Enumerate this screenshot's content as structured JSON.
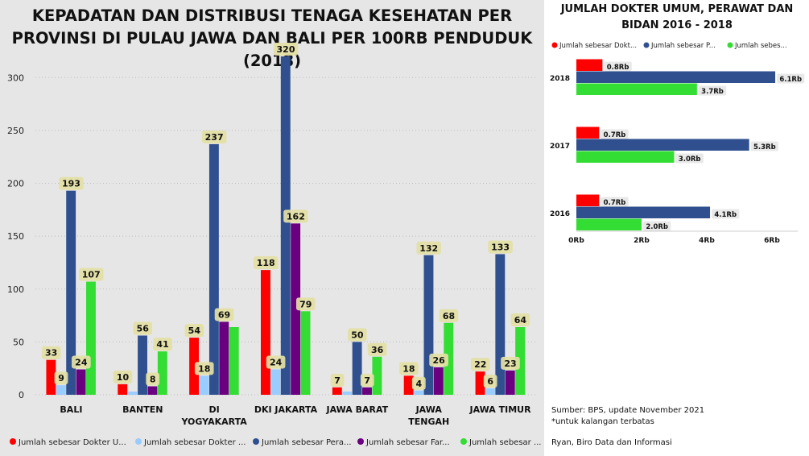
{
  "left": {
    "title": "KEPADATAN DAN DISTRIBUSI TENAGA KESEHATAN PER PROVINSI DI PULAU JAWA DAN BALI PER 100RB PENDUDUK (2018)"
  },
  "right": {
    "title": "JUMLAH DOKTER UMUM, PERAWAT DAN BIDAN 2016 - 2018"
  },
  "notes": {
    "source": "Sumber: BPS, update November 2021",
    "footnote": "*untuk kalangan terbatas",
    "author": "Ryan, Biro Data dan Informasi"
  },
  "chart_data": [
    {
      "type": "bar",
      "title": "KEPADATAN DAN DISTRIBUSI TENAGA KESEHATAN PER PROVINSI DI PULAU JAWA DAN BALI PER 100RB PENDUDUK (2018)",
      "categories": [
        [
          "BALI"
        ],
        [
          "BANTEN"
        ],
        [
          "DI",
          "YOGYAKARTA"
        ],
        [
          "DKI JAKARTA"
        ],
        [
          "JAWA BARAT"
        ],
        [
          "JAWA",
          "TENGAH"
        ],
        [
          "JAWA TIMUR"
        ]
      ],
      "ylim": [
        0,
        320
      ],
      "yticks": [
        0,
        50,
        100,
        150,
        200,
        250,
        300
      ],
      "grid": true,
      "legend_position": "bottom",
      "series": [
        {
          "name": "Jumlah sebesar Dokter U...",
          "color": "#ff0000",
          "values": [
            33,
            10,
            54,
            118,
            7,
            18,
            22
          ],
          "labels": [
            "33",
            "10",
            "54",
            "118",
            "7",
            "18",
            "22"
          ]
        },
        {
          "name": "Jumlah sebesar Dokter ...",
          "color": "#99ccff",
          "values": [
            9,
            3,
            18,
            24,
            3,
            4,
            6
          ],
          "labels": [
            "9",
            "",
            "18",
            "24",
            "",
            "4",
            "6"
          ]
        },
        {
          "name": "Jumlah sebesar Pera...",
          "color": "#2f4f8f",
          "values": [
            193,
            56,
            237,
            320,
            50,
            132,
            133
          ],
          "labels": [
            "193",
            "56",
            "237",
            "320",
            "50",
            "132",
            "133"
          ]
        },
        {
          "name": "Jumlah sebesar Far...",
          "color": "#6a0080",
          "values": [
            24,
            8,
            69,
            162,
            7,
            26,
            23
          ],
          "labels": [
            "24",
            "8",
            "69",
            "162",
            "7",
            "26",
            "23"
          ]
        },
        {
          "name": "Jumlah sebesar ...",
          "color": "#33dd33",
          "values": [
            107,
            41,
            64,
            79,
            36,
            68,
            64
          ],
          "labels": [
            "107",
            "41",
            "",
            "79",
            "36",
            "68",
            "64"
          ]
        }
      ]
    },
    {
      "type": "bar",
      "orientation": "horizontal",
      "title": "JUMLAH DOKTER UMUM, PERAWAT DAN BIDAN 2016 - 2018",
      "categories": [
        "2018",
        "2017",
        "2016"
      ],
      "xlim": [
        0,
        6.5
      ],
      "xticks": [
        0,
        2,
        4,
        6
      ],
      "xtick_labels": [
        "0Rb",
        "2Rb",
        "4Rb",
        "6Rb"
      ],
      "legend_position": "top",
      "series": [
        {
          "name": "Jumlah sebesar Dokt...",
          "color": "#ff0000",
          "values": [
            0.8,
            0.7,
            0.7
          ],
          "labels": [
            "0.8Rb",
            "0.7Rb",
            "0.7Rb"
          ]
        },
        {
          "name": "Jumlah sebesar P...",
          "color": "#2f4f8f",
          "values": [
            6.1,
            5.3,
            4.1
          ],
          "labels": [
            "6.1Rb",
            "5.3Rb",
            "4.1Rb"
          ]
        },
        {
          "name": "Jumlah sebes...",
          "color": "#33dd33",
          "values": [
            3.7,
            3.0,
            2.0
          ],
          "labels": [
            "3.7Rb",
            "3.0Rb",
            "2.0Rb"
          ]
        }
      ]
    }
  ]
}
